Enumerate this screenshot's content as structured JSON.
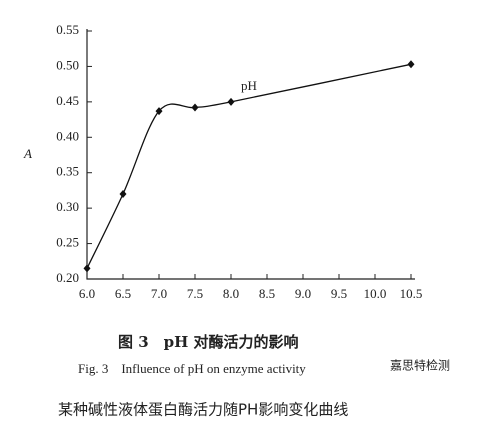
{
  "chart_data": {
    "type": "line",
    "x_label": "pH",
    "y_label": "A",
    "caption_cn": "图 3　pH 对酶活力的影响",
    "caption_en": "Fig. 3　Influence of pH on enzyme activity",
    "watermark": "嘉思特检测",
    "description": "某种碱性液体蛋白酶活力随PH影响变化曲线",
    "x": [
      6.0,
      6.5,
      7.0,
      7.5,
      8.0,
      10.5
    ],
    "series": [
      {
        "color": "#111111",
        "values": [
          0.215,
          0.32,
          0.437,
          0.442,
          0.45,
          0.503
        ]
      }
    ],
    "xlim": [
      6.0,
      10.5
    ],
    "xticks": [
      {
        "value": 6,
        "label": "6.0"
      },
      6.5,
      {
        "value": 7,
        "label": "7.0"
      },
      7.5,
      {
        "value": 8,
        "label": "8.0"
      },
      8.5,
      {
        "value": 9,
        "label": "9.0"
      },
      9.5,
      {
        "value": 10,
        "label": "10.0"
      },
      10.5
    ],
    "ylim": [
      0.2,
      0.55
    ],
    "yticks": [
      {
        "value": 0.2,
        "label": "0.20"
      },
      0.25,
      {
        "value": 0.3,
        "label": "0.30"
      },
      0.35,
      {
        "value": 0.4,
        "label": "0.40"
      },
      0.45,
      {
        "value": 0.5,
        "label": "0.50"
      },
      0.55
    ]
  }
}
